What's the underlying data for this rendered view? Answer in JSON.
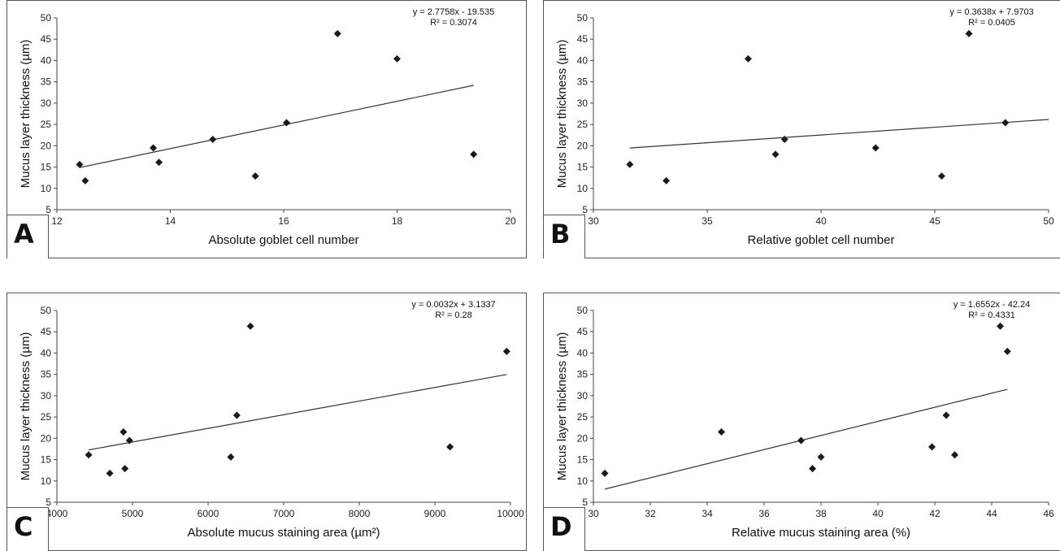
{
  "panels": [
    {
      "letter": "A",
      "ylabel": "Mucus layer thickness (µm)",
      "xlabel": "Absolute goblet cell number",
      "equation": "y = 2.7758x - 19.535",
      "r2": "R² = 0.3074"
    },
    {
      "letter": "B",
      "ylabel": "Mucus layer thickness (µm)",
      "xlabel": "Relative goblet cell number",
      "equation": "y = 0.3638x + 7.9703",
      "r2": "R² = 0.0405"
    },
    {
      "letter": "C",
      "ylabel": "Mucus layer thickness (µm)",
      "xlabel": "Absolute mucus staining area  (µm²)",
      "equation": "y = 0.0032x + 3.1337",
      "r2": "R² = 0.28"
    },
    {
      "letter": "D",
      "ylabel": "Mucus layer thickness (µm)",
      "xlabel": "Relative mucus staining area  (%)",
      "equation": "y = 1.6552x - 42.24",
      "r2": "R² = 0.4331"
    }
  ],
  "chart_data": [
    {
      "type": "scatter",
      "xlabel": "Absolute goblet cell number",
      "ylabel": "Mucus layer thickness (µm)",
      "xlim": [
        12,
        20
      ],
      "ylim": [
        5,
        50
      ],
      "xticks": [
        12,
        14,
        16,
        18,
        20
      ],
      "yticks": [
        5,
        10,
        15,
        20,
        25,
        30,
        35,
        40,
        45,
        50
      ],
      "x": [
        12.4,
        12.5,
        13.7,
        13.8,
        14.75,
        15.5,
        16.05,
        16.95,
        18.0,
        19.35
      ],
      "y": [
        15.6,
        11.8,
        19.5,
        16.1,
        21.5,
        12.9,
        25.4,
        46.3,
        40.4,
        18.0
      ],
      "trendline": {
        "slope": 2.7758,
        "intercept": -19.535,
        "x_range": [
          12.4,
          19.35
        ]
      },
      "equation": "y = 2.7758x - 19.535",
      "r2": "R² = 0.3074",
      "grid": false,
      "marker_color": "#1a1a1a"
    },
    {
      "type": "scatter",
      "xlabel": "Relative goblet cell number",
      "ylabel": "Mucus layer thickness (µm)",
      "xlim": [
        30,
        50
      ],
      "ylim": [
        5,
        50
      ],
      "xticks": [
        30,
        35,
        40,
        45,
        50
      ],
      "yticks": [
        5,
        10,
        15,
        20,
        25,
        30,
        35,
        40,
        45,
        50
      ],
      "x": [
        31.6,
        33.2,
        36.8,
        38.0,
        38.4,
        42.4,
        45.3,
        46.5,
        48.1
      ],
      "y": [
        15.6,
        11.8,
        40.4,
        18.0,
        21.5,
        19.5,
        12.9,
        46.3,
        25.4
      ],
      "trendline": {
        "slope": 0.3638,
        "intercept": 7.9703,
        "x_range": [
          31.6,
          50
        ]
      },
      "equation": "y = 0.3638x + 7.9703",
      "r2": "R² = 0.0405",
      "grid": false,
      "marker_color": "#1a1a1a"
    },
    {
      "type": "scatter",
      "xlabel": "Absolute mucus staining area  (µm²)",
      "ylabel": "Mucus layer thickness (µm)",
      "xlim": [
        4000,
        10000
      ],
      "ylim": [
        5,
        50
      ],
      "xticks": [
        4000,
        5000,
        6000,
        7000,
        8000,
        9000,
        10000
      ],
      "yticks": [
        5,
        10,
        15,
        20,
        25,
        30,
        35,
        40,
        45,
        50
      ],
      "x": [
        4420,
        4700,
        4880,
        4900,
        4960,
        6300,
        6380,
        6560,
        9200,
        9950
      ],
      "y": [
        16.1,
        11.8,
        21.5,
        12.9,
        19.5,
        15.6,
        25.4,
        46.3,
        18.0,
        40.4
      ],
      "trendline": {
        "slope": 0.0032,
        "intercept": 3.1337,
        "x_range": [
          4420,
          9950
        ]
      },
      "equation": "y = 0.0032x + 3.1337",
      "r2": "R² = 0.28",
      "grid": false,
      "marker_color": "#1a1a1a"
    },
    {
      "type": "scatter",
      "xlabel": "Relative mucus staining area  (%)",
      "ylabel": "Mucus layer thickness (µm)",
      "xlim": [
        30,
        46
      ],
      "ylim": [
        5,
        50
      ],
      "xticks": [
        30,
        32,
        34,
        36,
        38,
        40,
        42,
        44,
        46
      ],
      "yticks": [
        5,
        10,
        15,
        20,
        25,
        30,
        35,
        40,
        45,
        50
      ],
      "x": [
        30.4,
        34.5,
        37.3,
        37.7,
        38.0,
        41.9,
        42.4,
        42.7,
        44.3,
        44.55
      ],
      "y": [
        11.8,
        21.5,
        19.5,
        12.9,
        15.6,
        18.0,
        25.4,
        16.1,
        46.3,
        40.4
      ],
      "trendline": {
        "slope": 1.6552,
        "intercept": -42.24,
        "x_range": [
          30.4,
          44.55
        ]
      },
      "equation": "y = 1.6552x - 42.24",
      "r2": "R² = 0.4331",
      "grid": false,
      "marker_color": "#1a1a1a"
    }
  ]
}
